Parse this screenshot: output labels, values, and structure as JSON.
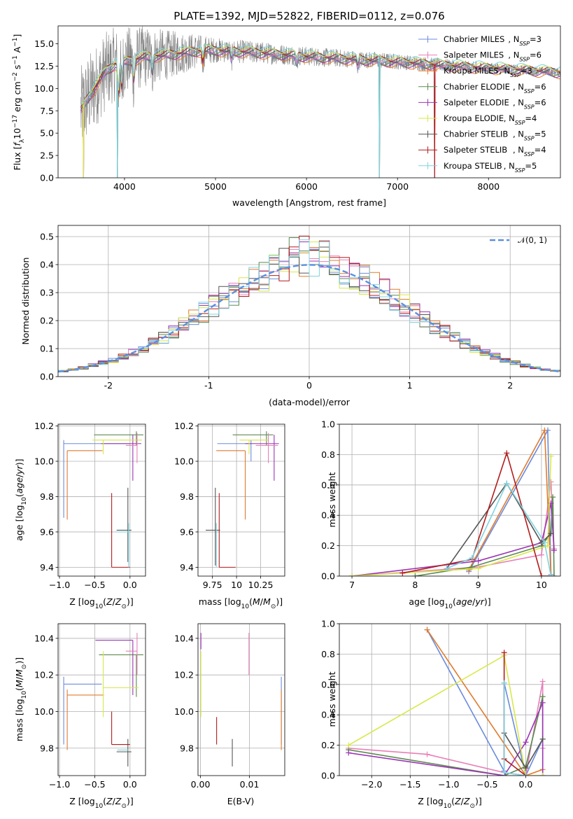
{
  "series_styles": [
    {
      "name": "Chabrier MILES",
      "nssp": "3",
      "color": "#6b8bdc"
    },
    {
      "name": "Salpeter MILES",
      "nssp": "6",
      "color": "#e87fb8"
    },
    {
      "name": "Kroupa MILES",
      "nssp": "3",
      "color": "#e07b2e"
    },
    {
      "name": "Chabrier ELODIE",
      "nssp": "6",
      "color": "#5c8a50"
    },
    {
      "name": "Salpeter ELODIE",
      "nssp": "6",
      "color": "#9b35b5"
    },
    {
      "name": "Kroupa ELODIE",
      "nssp": "4",
      "color": "#d7e84a"
    },
    {
      "name": "Chabrier STELIB",
      "nssp": "5",
      "color": "#555555"
    },
    {
      "name": "Salpeter STELIB",
      "nssp": "4",
      "color": "#b21c1c"
    },
    {
      "name": "Kroupa STELIB",
      "nssp": "5",
      "color": "#7fd4e0"
    }
  ],
  "chart_data": [
    {
      "id": "spectrum",
      "type": "line",
      "title": "PLATE=1392, MJD=52822, FIBERID=0112, z=0.076",
      "xlabel": "wavelength [Angstrom, rest frame]",
      "ylabel": "Flux [fλ10⁻¹⁷ erg cm⁻² s⁻¹ A⁻¹]",
      "xlim": [
        3270,
        8790
      ],
      "ylim": [
        0,
        17
      ],
      "xticks": [
        4000,
        5000,
        6000,
        7000,
        8000
      ],
      "yticks": [
        0.0,
        2.5,
        5.0,
        7.5,
        10.0,
        12.5,
        15.0
      ],
      "legend_position": "upper right",
      "legend": [
        "Chabrier MILES, N_SSP=3",
        "Salpeter MILES, N_SSP=6",
        "Kroupa MILES, N_SSP=3",
        "Chabrier ELODIE, N_SSP=6",
        "Salpeter ELODIE, N_SSP=6",
        "Kroupa ELODIE, N_SSP=4",
        "Chabrier STELIB, N_SSP=5",
        "Salpeter STELIB, N_SSP=4",
        "Kroupa STELIB, N_SSP=5"
      ],
      "data_color": "#808080",
      "continuum": [
        [
          3520,
          7.5
        ],
        [
          3600,
          9.0
        ],
        [
          3700,
          10.5
        ],
        [
          3800,
          12.0
        ],
        [
          3900,
          12.8
        ],
        [
          4000,
          13.0
        ],
        [
          4200,
          13.5
        ],
        [
          4500,
          13.8
        ],
        [
          4800,
          14.2
        ],
        [
          5000,
          14.3
        ],
        [
          5500,
          14.0
        ],
        [
          6000,
          13.6
        ],
        [
          6500,
          13.3
        ],
        [
          7000,
          13.0
        ],
        [
          7500,
          12.6
        ],
        [
          8000,
          12.3
        ],
        [
          8500,
          12.0
        ],
        [
          8790,
          11.8
        ]
      ],
      "noise_amplitude": [
        [
          3520,
          5.0
        ],
        [
          4200,
          3.5
        ],
        [
          5000,
          1.4
        ],
        [
          6000,
          1.1
        ],
        [
          7000,
          0.9
        ],
        [
          8000,
          0.6
        ],
        [
          8790,
          0.5
        ]
      ],
      "absorption_lines": [
        [
          3934,
          3.5
        ],
        [
          3969,
          3.0
        ],
        [
          4102,
          2.0
        ],
        [
          4304,
          1.5
        ],
        [
          4861,
          1.2
        ],
        [
          5175,
          1.0
        ],
        [
          5893,
          0.8
        ],
        [
          6563,
          0.8
        ]
      ],
      "masked_drops": [
        3550,
        3920,
        6800,
        7410
      ],
      "ssp_grid": {
        "x": "wavelength",
        "y": "flux"
      }
    },
    {
      "id": "residuals",
      "type": "step",
      "xlabel": "(data-model)/error",
      "ylabel": "Normed distribution",
      "xlim": [
        -2.5,
        2.5
      ],
      "ylim": [
        0,
        0.54
      ],
      "xticks": [
        -2,
        -1,
        0,
        1,
        2
      ],
      "yticks": [
        0.0,
        0.1,
        0.2,
        0.3,
        0.4,
        0.5
      ],
      "grid": true,
      "legend_position": "upper right",
      "legend": [
        "𝒩(0, 1)"
      ],
      "bin_width": 0.1,
      "gaussian": {
        "mean": 0,
        "sigma": 1,
        "color": "#5b8fdf"
      }
    },
    {
      "id": "age_vs_Z",
      "type": "errorbar",
      "xlabel": "Z [log10(Z/Z☉)]",
      "ylabel": "age  [log10(age/yr)]",
      "xlim": [
        -1.02,
        0.22
      ],
      "ylim": [
        9.35,
        10.21
      ],
      "xticks": [
        -1.0,
        -0.5,
        0.0
      ],
      "xticklabels": [
        "−1.0",
        "−0.5",
        "0.0"
      ],
      "yticks": [
        9.4,
        9.6,
        9.8,
        10.0,
        10.2
      ],
      "grid": true,
      "points": [
        {
          "s": 0,
          "x": -0.94,
          "xerr": [
            0.0,
            0.94
          ],
          "y": 10.1,
          "yerr": [
            0.42,
            0.02
          ]
        },
        {
          "s": 2,
          "x": -0.89,
          "xerr": [
            0.0,
            0.5
          ],
          "y": 10.06,
          "yerr": [
            0.39,
            0.0
          ]
        },
        {
          "s": 3,
          "x": 0.09,
          "xerr": [
            0.6,
            0.1
          ],
          "y": 10.15,
          "yerr": [
            0.06,
            0.02
          ]
        },
        {
          "s": 4,
          "x": 0.04,
          "xerr": [
            0.45,
            0.12
          ],
          "y": 10.1,
          "yerr": [
            0.21,
            0.05
          ]
        },
        {
          "s": 5,
          "x": -0.38,
          "xerr": [
            0.15,
            0.55
          ],
          "y": 10.12,
          "yerr": [
            0.08,
            0.0
          ]
        },
        {
          "s": 1,
          "x": 0.1,
          "xerr": [
            0.16,
            0.0
          ],
          "y": 10.09,
          "yerr": [
            0.1,
            0.07
          ]
        },
        {
          "s": 6,
          "x": -0.03,
          "xerr": [
            0.16,
            0.05
          ],
          "y": 9.61,
          "yerr": [
            0.18,
            0.24
          ]
        },
        {
          "s": 7,
          "x": -0.26,
          "xerr": [
            0.0,
            0.26
          ],
          "y": 9.4,
          "yerr": [
            0.0,
            0.42
          ]
        },
        {
          "s": 8,
          "x": -0.02,
          "xerr": [
            0.18,
            0.02
          ],
          "y": 9.6,
          "yerr": [
            0.2,
            0.05
          ]
        }
      ]
    },
    {
      "id": "age_vs_mass",
      "type": "errorbar",
      "xlabel": "mass [log10(M/M☉)]",
      "ylabel": "",
      "xlim": [
        9.6,
        10.5
      ],
      "ylim": [
        9.35,
        10.21
      ],
      "xticks": [
        9.75,
        10.0,
        10.25
      ],
      "yticks": [
        9.4,
        9.6,
        9.8,
        10.0,
        10.2
      ],
      "grid": true,
      "points": [
        {
          "s": 0,
          "x": 10.15,
          "xerr": [
            0.35,
            0.0
          ],
          "y": 10.1,
          "yerr": [
            0.1,
            0.02
          ]
        },
        {
          "s": 2,
          "x": 10.09,
          "xerr": [
            0.3,
            0.0
          ],
          "y": 10.06,
          "yerr": [
            0.39,
            0.0
          ]
        },
        {
          "s": 3,
          "x": 10.31,
          "xerr": [
            0.35,
            0.07
          ],
          "y": 10.15,
          "yerr": [
            0.06,
            0.02
          ]
        },
        {
          "s": 4,
          "x": 10.39,
          "xerr": [
            0.3,
            0.05
          ],
          "y": 10.1,
          "yerr": [
            0.21,
            0.05
          ]
        },
        {
          "s": 5,
          "x": 10.13,
          "xerr": [
            0.1,
            0.2
          ],
          "y": 10.12,
          "yerr": [
            0.08,
            0.0
          ]
        },
        {
          "s": 1,
          "x": 10.33,
          "xerr": [
            0.13,
            0.1
          ],
          "y": 10.09,
          "yerr": [
            0.1,
            0.07
          ]
        },
        {
          "s": 6,
          "x": 9.78,
          "xerr": [
            0.1,
            0.05
          ],
          "y": 9.61,
          "yerr": [
            0.2,
            0.24
          ]
        },
        {
          "s": 7,
          "x": 9.82,
          "xerr": [
            0.0,
            0.17
          ],
          "y": 9.4,
          "yerr": [
            0.0,
            0.42
          ]
        },
        {
          "s": 8,
          "x": 9.79,
          "xerr": [
            0.0,
            0.02
          ],
          "y": 9.6,
          "yerr": [
            0.2,
            0.05
          ]
        }
      ]
    },
    {
      "id": "weight_vs_age",
      "type": "line",
      "xlabel": "age  [log10(age/yr)]",
      "ylabel": "mass weight",
      "xlim": [
        6.8,
        10.3
      ],
      "ylim": [
        0,
        1.0
      ],
      "xticks": [
        7,
        8,
        9,
        10
      ],
      "yticks": [
        0.0,
        0.2,
        0.4,
        0.6,
        0.8,
        1.0
      ],
      "grid": true,
      "series": [
        {
          "s": 0,
          "x": [
            8.85,
            10.1,
            10.15
          ],
          "y": [
            0.03,
            0.96,
            0.01
          ]
        },
        {
          "s": 1,
          "x": [
            7.0,
            9.0,
            10.0,
            10.15,
            10.2
          ],
          "y": [
            0.0,
            0.06,
            0.14,
            0.62,
            0.18
          ]
        },
        {
          "s": 2,
          "x": [
            8.85,
            10.05,
            10.15
          ],
          "y": [
            0.04,
            0.96,
            0.0
          ]
        },
        {
          "s": 3,
          "x": [
            8.0,
            8.9,
            10.0,
            10.15,
            10.18,
            10.2
          ],
          "y": [
            0.0,
            0.06,
            0.2,
            0.28,
            0.52,
            0.0
          ]
        },
        {
          "s": 4,
          "x": [
            7.0,
            9.0,
            10.0,
            10.15,
            10.2
          ],
          "y": [
            0.0,
            0.1,
            0.22,
            0.48,
            0.17
          ]
        },
        {
          "s": 5,
          "x": [
            7.0,
            9.0,
            10.1,
            10.15
          ],
          "y": [
            0.0,
            0.05,
            0.2,
            0.79
          ]
        },
        {
          "s": 6,
          "x": [
            8.5,
            9.45,
            10.0,
            10.15
          ],
          "y": [
            0.05,
            0.61,
            0.22,
            0.28
          ]
        },
        {
          "s": 7,
          "x": [
            7.8,
            8.9,
            9.45,
            10.0,
            10.15
          ],
          "y": [
            0.02,
            0.11,
            0.81,
            0.0,
            0.0
          ]
        },
        {
          "s": 8,
          "x": [
            8.5,
            8.9,
            9.45,
            10.05,
            10.15
          ],
          "y": [
            0.05,
            0.12,
            0.61,
            0.22,
            0.0
          ]
        }
      ]
    },
    {
      "id": "mass_vs_Z",
      "type": "errorbar",
      "xlabel": "Z [log10(Z/Z☉)]",
      "ylabel": "mass [log10(M/M☉)]",
      "xlim": [
        -1.02,
        0.22
      ],
      "ylim": [
        9.65,
        10.48
      ],
      "xticks": [
        -1.0,
        -0.5,
        0.0
      ],
      "xticklabels": [
        "−1.0",
        "−0.5",
        "0.0"
      ],
      "yticks": [
        9.8,
        10.0,
        10.2,
        10.4
      ],
      "grid": true,
      "points": [
        {
          "s": 0,
          "x": -0.94,
          "xerr": [
            0.0,
            0.54
          ],
          "y": 10.15,
          "yerr": [
            0.33,
            0.04
          ]
        },
        {
          "s": 2,
          "x": -0.89,
          "xerr": [
            0.0,
            0.52
          ],
          "y": 10.09,
          "yerr": [
            0.3,
            0.03
          ]
        },
        {
          "s": 3,
          "x": 0.09,
          "xerr": [
            0.53,
            0.1
          ],
          "y": 10.31,
          "yerr": [
            0.23,
            0.0
          ]
        },
        {
          "s": 4,
          "x": 0.04,
          "xerr": [
            0.53,
            0.0
          ],
          "y": 10.39,
          "yerr": [
            0.3,
            0.0
          ]
        },
        {
          "s": 5,
          "x": -0.38,
          "xerr": [
            0.0,
            0.5
          ],
          "y": 10.13,
          "yerr": [
            0.16,
            0.2
          ]
        },
        {
          "s": 1,
          "x": 0.1,
          "xerr": [
            0.16,
            0.0
          ],
          "y": 10.33,
          "yerr": [
            0.13,
            0.1
          ]
        },
        {
          "s": 6,
          "x": -0.03,
          "xerr": [
            0.16,
            0.05
          ],
          "y": 9.78,
          "yerr": [
            0.08,
            0.07
          ]
        },
        {
          "s": 7,
          "x": -0.26,
          "xerr": [
            0.0,
            0.26
          ],
          "y": 9.82,
          "yerr": [
            0.0,
            0.18
          ]
        },
        {
          "s": 8,
          "x": -0.02,
          "xerr": [
            0.16,
            0.0
          ],
          "y": 9.79,
          "yerr": [
            0.0,
            0.0
          ]
        }
      ]
    },
    {
      "id": "mass_vs_ebv",
      "type": "errorbar",
      "xlabel": "E(B-V)",
      "ylabel": "",
      "xlim": [
        -0.0005,
        0.0172
      ],
      "ylim": [
        9.65,
        10.48
      ],
      "xticks": [
        0.0,
        0.01
      ],
      "xticklabels": [
        "0.00",
        "0.01"
      ],
      "yticks": [
        9.8,
        10.0,
        10.2,
        10.4
      ],
      "grid": true,
      "points": [
        {
          "s": 0,
          "x": 0.0165,
          "xerr": [
            0.0,
            0.0
          ],
          "y": 10.15,
          "yerr": [
            0.33,
            0.04
          ]
        },
        {
          "s": 2,
          "x": 0.0165,
          "xerr": [
            0.0,
            0.0
          ],
          "y": 10.09,
          "yerr": [
            0.3,
            0.03
          ]
        },
        {
          "s": 3,
          "x": 0.0003,
          "xerr": [
            0.0,
            0.0
          ],
          "y": 10.31,
          "yerr": [
            0.0,
            0.0
          ]
        },
        {
          "s": 4,
          "x": 0.0001,
          "xerr": [
            0.0,
            0.0
          ],
          "y": 10.39,
          "yerr": [
            0.05,
            0.04
          ]
        },
        {
          "s": 5,
          "x": 0.0001,
          "xerr": [
            0.0,
            0.0
          ],
          "y": 10.13,
          "yerr": [
            0.16,
            0.2
          ]
        },
        {
          "s": 1,
          "x": 0.0099,
          "xerr": [
            0.0,
            0.0
          ],
          "y": 10.33,
          "yerr": [
            0.13,
            0.1
          ]
        },
        {
          "s": 6,
          "x": 0.0065,
          "xerr": [
            0.0,
            0.0
          ],
          "y": 9.78,
          "yerr": [
            0.08,
            0.07
          ]
        },
        {
          "s": 7,
          "x": 0.0033,
          "xerr": [
            0.0,
            0.0
          ],
          "y": 9.82,
          "yerr": [
            0.0,
            0.15
          ]
        },
        {
          "s": 8,
          "x": 0.0065,
          "xerr": [
            0.0,
            0.0
          ],
          "y": 9.79,
          "yerr": [
            0.0,
            0.0
          ]
        }
      ]
    },
    {
      "id": "weight_vs_Z",
      "type": "line",
      "xlabel": "Z [log10(Z/Z☉)]",
      "ylabel": "mass weight",
      "xlim": [
        -2.42,
        0.45
      ],
      "ylim": [
        0,
        1.0
      ],
      "xticks": [
        -2.0,
        -1.5,
        -1.0,
        -0.5,
        0.0
      ],
      "xticklabels": [
        "−2.0",
        "−1.5",
        "−1.0",
        "−0.5",
        "0.0"
      ],
      "yticks": [
        0.0,
        0.2,
        0.4,
        0.6,
        0.8,
        1.0
      ],
      "grid": true,
      "series": [
        {
          "s": 0,
          "x": [
            -1.28,
            -0.28,
            -0.28,
            0.0,
            0.22
          ],
          "y": [
            0.96,
            0.03,
            0.61,
            0.0,
            0.24
          ]
        },
        {
          "s": 1,
          "x": [
            -2.3,
            -1.28,
            -0.28,
            0.0,
            0.22,
            0.22
          ],
          "y": [
            0.18,
            0.14,
            0.02,
            0.0,
            0.62,
            0.18
          ]
        },
        {
          "s": 2,
          "x": [
            -1.28,
            0.0,
            0.22
          ],
          "y": [
            0.96,
            0.0,
            0.04
          ]
        },
        {
          "s": 3,
          "x": [
            -2.3,
            -0.28,
            0.0,
            0.22,
            0.22
          ],
          "y": [
            0.17,
            0.0,
            0.06,
            0.52,
            0.24
          ]
        },
        {
          "s": 4,
          "x": [
            -2.3,
            -0.28,
            0.0,
            0.22,
            0.22
          ],
          "y": [
            0.15,
            0.0,
            0.22,
            0.48,
            0.0
          ]
        },
        {
          "s": 5,
          "x": [
            -2.3,
            -0.28,
            0.0,
            0.22
          ],
          "y": [
            0.2,
            0.79,
            0.0,
            0.0
          ]
        },
        {
          "s": 6,
          "x": [
            -0.28,
            0.0,
            0.22
          ],
          "y": [
            0.28,
            0.05,
            0.24
          ]
        },
        {
          "s": 7,
          "x": [
            -0.28,
            -0.28,
            0.0
          ],
          "y": [
            0.81,
            0.11,
            0.0
          ]
        },
        {
          "s": 8,
          "x": [
            -0.28,
            -0.28,
            0.0
          ],
          "y": [
            0.61,
            0.02,
            0.0
          ]
        }
      ]
    }
  ]
}
